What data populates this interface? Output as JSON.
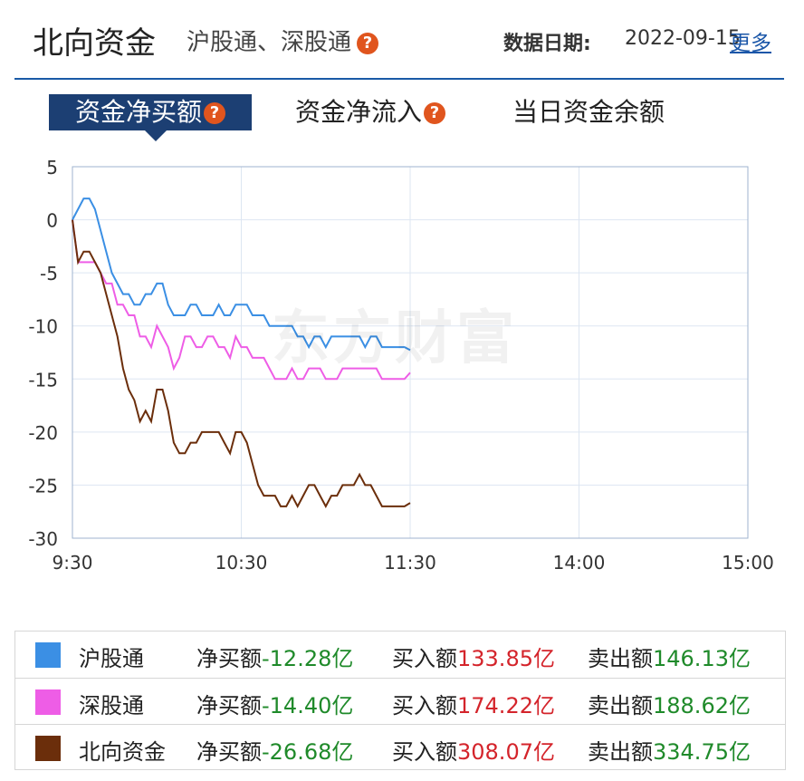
{
  "header": {
    "title": "北向资金",
    "subtitle": "沪股通、深股通",
    "date_label": "数据日期:",
    "date_value": "2022-09-15",
    "more_link": "更多"
  },
  "tabs": [
    {
      "label": "资金净买额",
      "active": true,
      "has_help": true
    },
    {
      "label": "资金净流入",
      "active": false,
      "has_help": true
    },
    {
      "label": "当日资金余额",
      "active": false,
      "has_help": false
    }
  ],
  "watermark": "东方财富",
  "chart_data": {
    "type": "line",
    "x_ticks": [
      "9:30",
      "10:30",
      "11:30",
      "14:00",
      "15:00"
    ],
    "y_ticks": [
      5,
      0,
      -5,
      -10,
      -15,
      -20,
      -25,
      -30
    ],
    "ylim": [
      -30,
      5
    ],
    "x_minutes_range": [
      0,
      240
    ],
    "grid": true,
    "series": [
      {
        "name": "沪股通",
        "color": "#3b8fe4",
        "x": [
          0,
          2,
          4,
          6,
          8,
          10,
          12,
          14,
          16,
          18,
          20,
          22,
          24,
          26,
          28,
          30,
          32,
          34,
          36,
          38,
          40,
          42,
          44,
          46,
          48,
          50,
          52,
          54,
          56,
          58,
          60,
          62,
          64,
          66,
          68,
          70,
          72,
          74,
          76,
          78,
          80,
          82,
          84,
          86,
          88,
          90,
          92,
          94,
          96,
          98,
          100,
          102,
          104,
          106,
          108,
          110,
          112,
          114,
          116,
          118,
          120
        ],
        "values": [
          0,
          1,
          2,
          2,
          1,
          -1,
          -3,
          -5,
          -6,
          -7,
          -7,
          -8,
          -8,
          -7,
          -7,
          -6,
          -6,
          -8,
          -9,
          -9,
          -9,
          -8,
          -8,
          -9,
          -9,
          -9,
          -8,
          -9,
          -9,
          -8,
          -8,
          -8,
          -9,
          -9,
          -9,
          -10,
          -10,
          -10,
          -10,
          -10,
          -11,
          -11,
          -12,
          -11,
          -11,
          -12,
          -11,
          -11,
          -11,
          -11,
          -11,
          -11,
          -12,
          -11,
          -11,
          -12,
          -12,
          -12,
          -12,
          -12,
          -12.28
        ]
      },
      {
        "name": "深股通",
        "color": "#ee5de6",
        "x": [
          0,
          2,
          4,
          6,
          8,
          10,
          12,
          14,
          16,
          18,
          20,
          22,
          24,
          26,
          28,
          30,
          32,
          34,
          36,
          38,
          40,
          42,
          44,
          46,
          48,
          50,
          52,
          54,
          56,
          58,
          60,
          62,
          64,
          66,
          68,
          70,
          72,
          74,
          76,
          78,
          80,
          82,
          84,
          86,
          88,
          90,
          92,
          94,
          96,
          98,
          100,
          102,
          104,
          106,
          108,
          110,
          112,
          114,
          116,
          118,
          120
        ],
        "values": [
          0,
          -4,
          -4,
          -4,
          -4,
          -5,
          -6,
          -6,
          -8,
          -8,
          -9,
          -9,
          -11,
          -11,
          -12,
          -10,
          -11,
          -12,
          -14,
          -13,
          -11,
          -11,
          -12,
          -12,
          -11,
          -11,
          -12,
          -12,
          -13,
          -11,
          -12,
          -12,
          -13,
          -13,
          -13,
          -14,
          -15,
          -15,
          -15,
          -14,
          -15,
          -15,
          -14,
          -14,
          -14,
          -15,
          -15,
          -15,
          -14,
          -14,
          -14,
          -14,
          -14,
          -14,
          -14,
          -15,
          -15,
          -15,
          -15,
          -15,
          -14.4
        ]
      },
      {
        "name": "北向资金",
        "color": "#6b2e0b",
        "x": [
          0,
          2,
          4,
          6,
          8,
          10,
          12,
          14,
          16,
          18,
          20,
          22,
          24,
          26,
          28,
          30,
          32,
          34,
          36,
          38,
          40,
          42,
          44,
          46,
          48,
          50,
          52,
          54,
          56,
          58,
          60,
          62,
          64,
          66,
          68,
          70,
          72,
          74,
          76,
          78,
          80,
          82,
          84,
          86,
          88,
          90,
          92,
          94,
          96,
          98,
          100,
          102,
          104,
          106,
          108,
          110,
          112,
          114,
          116,
          118,
          120
        ],
        "values": [
          0,
          -4,
          -3,
          -3,
          -4,
          -5,
          -7,
          -9,
          -11,
          -14,
          -16,
          -17,
          -19,
          -18,
          -19,
          -16,
          -16,
          -18,
          -21,
          -22,
          -22,
          -21,
          -21,
          -20,
          -20,
          -20,
          -20,
          -21,
          -22,
          -20,
          -20,
          -21,
          -23,
          -25,
          -26,
          -26,
          -26,
          -27,
          -27,
          -26,
          -27,
          -26,
          -25,
          -25,
          -26,
          -27,
          -26,
          -26,
          -25,
          -25,
          -25,
          -24,
          -25,
          -25,
          -26,
          -27,
          -27,
          -27,
          -27,
          -27,
          -26.68
        ]
      }
    ]
  },
  "legend": [
    {
      "name": "沪股通",
      "color": "#3b8fe4",
      "net_label": "净买额",
      "net_value": "-12.28亿",
      "buy_label": "买入额",
      "buy_value": "133.85亿",
      "sell_label": "卖出额",
      "sell_value": "146.13亿"
    },
    {
      "name": "深股通",
      "color": "#ee5de6",
      "net_label": "净买额",
      "net_value": "-14.40亿",
      "buy_label": "买入额",
      "buy_value": "174.22亿",
      "sell_label": "卖出额",
      "sell_value": "188.62亿"
    },
    {
      "name": "北向资金",
      "color": "#6b2e0b",
      "net_label": "净买额",
      "net_value": "-26.68亿",
      "buy_label": "买入额",
      "buy_value": "308.07亿",
      "sell_label": "卖出额",
      "sell_value": "334.75亿"
    }
  ]
}
